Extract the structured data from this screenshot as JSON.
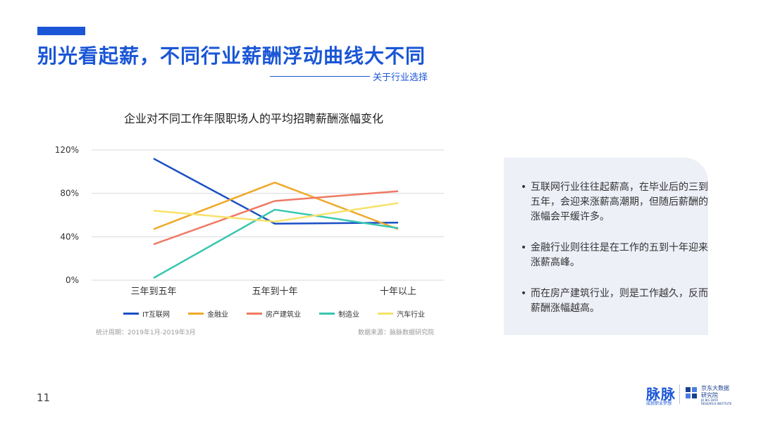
{
  "header": {
    "title": "别光看起薪，不同行业薪酬浮动曲线大不同",
    "subtitle": "关于行业选择"
  },
  "colors": {
    "accent": "#1a56d6",
    "grid": "#d9d9d9",
    "panel": "#eef0f8"
  },
  "chart_data": {
    "type": "line",
    "title": "企业对不同工作年限职场人的平均招聘薪酬涨幅变化",
    "xlabel": "",
    "ylabel": "",
    "categories": [
      "三年到五年",
      "五年到十年",
      "十年以上"
    ],
    "yticks": [
      "0%",
      "40%",
      "80%",
      "120%"
    ],
    "ylim": [
      0,
      120
    ],
    "grid": true,
    "legend_position": "bottom",
    "series": [
      {
        "name": "IT互联网",
        "color": "#1a4fc4",
        "values": [
          112,
          52,
          53
        ]
      },
      {
        "name": "金融业",
        "color": "#f0a82a",
        "values": [
          47,
          90,
          47
        ]
      },
      {
        "name": "房产建筑业",
        "color": "#ef7a64",
        "values": [
          33,
          73,
          82
        ]
      },
      {
        "name": "制造业",
        "color": "#37c7b0",
        "values": [
          2,
          65,
          48
        ]
      },
      {
        "name": "汽车行业",
        "color": "#f7e26a",
        "values": [
          64,
          54,
          71
        ]
      }
    ]
  },
  "footnotes": {
    "period": "统计周期：2019年1月-2019年3月",
    "source": "数据来源：脉脉数据研究院"
  },
  "insights": [
    "互联网行业往往起薪高，在毕业后的三到五年，会迎来涨薪高潮期，但随后薪酬的涨幅会平缓许多。",
    "金融行业则往往是在工作的五到十年迎来涨薪高峰。",
    "而在房产建筑行业，则是工作越久，反而薪酬涨幅越高。"
  ],
  "bullet": "•",
  "footer": {
    "page_number": "11",
    "logo_maimai": "脉脉",
    "logo_maimai_sub": "成就职业梦想",
    "logo_jd_line1": "京东大数据",
    "logo_jd_line2": "研究院",
    "logo_jd_en1": "JD BIG DATA",
    "logo_jd_en2": "RESEARCH INSTITUTE"
  }
}
